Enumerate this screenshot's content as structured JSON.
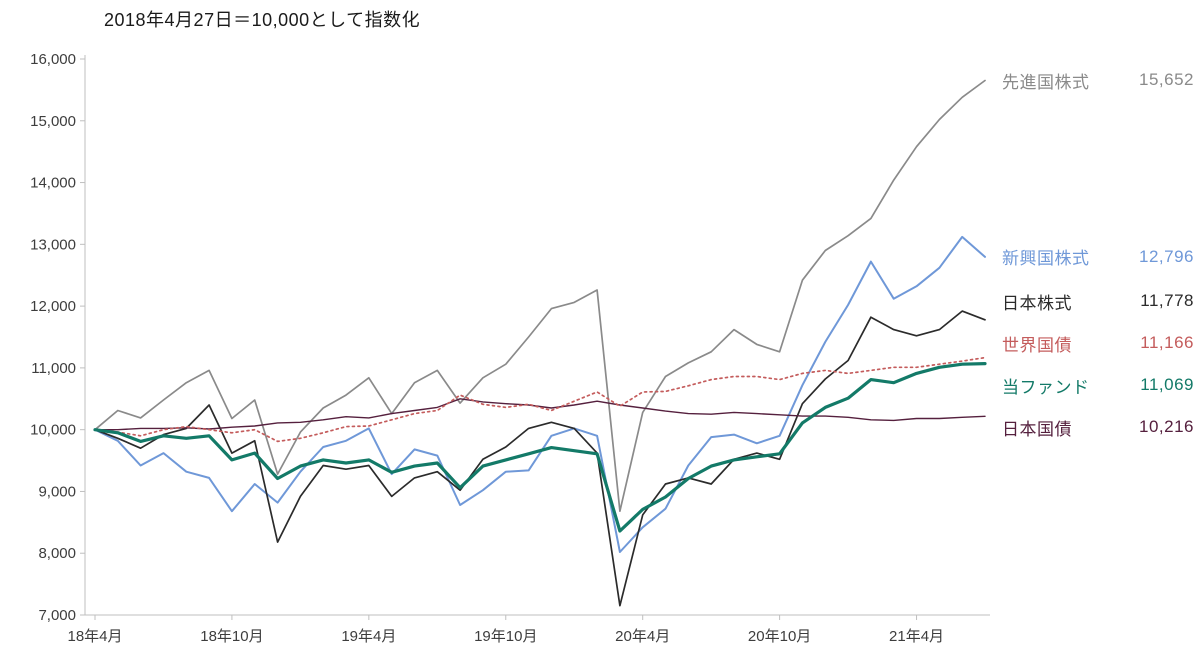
{
  "title": "2018年4月27日＝10,000として指数化",
  "chart_data": {
    "type": "line",
    "grid": false,
    "legend_position": "right",
    "ylim": [
      7000,
      16000
    ],
    "y_tick_step": 1000,
    "y_ticks": [
      {
        "label": "16,000",
        "value": 16000
      },
      {
        "label": "15,000",
        "value": 15000
      },
      {
        "label": "14,000",
        "value": 14000
      },
      {
        "label": "13,000",
        "value": 13000
      },
      {
        "label": "12,000",
        "value": 12000
      },
      {
        "label": "11,000",
        "value": 11000
      },
      {
        "label": "10,000",
        "value": 10000
      },
      {
        "label": "9,000",
        "value": 9000
      },
      {
        "label": "8,000",
        "value": 8000
      },
      {
        "label": "7,000",
        "value": 7000
      }
    ],
    "x_months_total": 40,
    "x_ticks": [
      {
        "label": "18年4月",
        "month": 0
      },
      {
        "label": "18年10月",
        "month": 6
      },
      {
        "label": "19年4月",
        "month": 12
      },
      {
        "label": "19年10月",
        "month": 18
      },
      {
        "label": "20年4月",
        "month": 24
      },
      {
        "label": "20年10月",
        "month": 30
      },
      {
        "label": "21年4月",
        "month": 36
      }
    ],
    "series": [
      {
        "key": "developed-equities",
        "name": "先進国株式",
        "end_label": "15,652",
        "end_value": 15652,
        "color": "#8a8a8a",
        "style": "solid",
        "width": 1.7,
        "values": [
          10000,
          10310,
          10190,
          10480,
          10760,
          10960,
          10180,
          10480,
          9280,
          9960,
          10350,
          10560,
          10840,
          10260,
          10760,
          10960,
          10430,
          10840,
          11060,
          11500,
          11960,
          12060,
          12260,
          8680,
          10280,
          10860,
          11080,
          11260,
          11620,
          11380,
          11260,
          12420,
          12900,
          13140,
          13420,
          14040,
          14580,
          15020,
          15380,
          15652
        ]
      },
      {
        "key": "emerging-equities",
        "name": "新興国株式",
        "end_label": "12,796",
        "end_value": 12796,
        "color": "#6f98d8",
        "style": "solid",
        "width": 2.0,
        "values": [
          10000,
          9820,
          9420,
          9620,
          9320,
          9220,
          8680,
          9120,
          8820,
          9320,
          9720,
          9820,
          10020,
          9280,
          9680,
          9580,
          8780,
          9020,
          9320,
          9340,
          9900,
          10020,
          9900,
          8020,
          8420,
          8720,
          9420,
          9880,
          9920,
          9780,
          9900,
          10720,
          11420,
          12020,
          12720,
          12120,
          12320,
          12620,
          13120,
          12796
        ]
      },
      {
        "key": "japan-equities",
        "name": "日本株式",
        "end_label": "11,778",
        "end_value": 11778,
        "color": "#2b2b2b",
        "style": "solid",
        "width": 1.7,
        "values": [
          10000,
          9860,
          9700,
          9920,
          10020,
          10400,
          9620,
          9820,
          8180,
          8920,
          9420,
          9360,
          9420,
          8920,
          9220,
          9320,
          9020,
          9520,
          9720,
          10020,
          10120,
          10020,
          9620,
          7150,
          8620,
          9120,
          9220,
          9120,
          9520,
          9620,
          9520,
          10420,
          10820,
          11120,
          11820,
          11620,
          11520,
          11620,
          11920,
          11778
        ]
      },
      {
        "key": "global-bonds",
        "name": "世界国債",
        "end_label": "11,166",
        "end_value": 11166,
        "color": "#c45c5c",
        "style": "dotted",
        "width": 1.7,
        "values": [
          10000,
          9960,
          9900,
          10000,
          10050,
          10000,
          9950,
          10000,
          9810,
          9860,
          9950,
          10050,
          10060,
          10160,
          10260,
          10310,
          10560,
          10410,
          10360,
          10410,
          10310,
          10460,
          10610,
          10380,
          10610,
          10620,
          10710,
          10810,
          10860,
          10860,
          10810,
          10910,
          10960,
          10910,
          10960,
          11010,
          11010,
          11060,
          11110,
          11166
        ]
      },
      {
        "key": "this-fund",
        "name": "当ファンド",
        "end_label": "11,069",
        "end_value": 11069,
        "color": "#137a68",
        "style": "solid",
        "width": 3.2,
        "values": [
          10000,
          9950,
          9810,
          9900,
          9860,
          9900,
          9510,
          9620,
          9210,
          9410,
          9510,
          9460,
          9510,
          9310,
          9410,
          9460,
          9060,
          9410,
          9510,
          9610,
          9710,
          9660,
          9610,
          8360,
          8710,
          8910,
          9210,
          9410,
          9510,
          9560,
          9610,
          10110,
          10360,
          10510,
          10810,
          10760,
          10910,
          11010,
          11060,
          11069
        ]
      },
      {
        "key": "japan-bonds",
        "name": "日本国債",
        "end_label": "10,216",
        "end_value": 10216,
        "color": "#55203e",
        "style": "solid",
        "width": 1.4,
        "values": [
          10000,
          10000,
          10020,
          10020,
          10030,
          10010,
          10040,
          10060,
          10110,
          10120,
          10160,
          10210,
          10190,
          10260,
          10310,
          10360,
          10500,
          10450,
          10420,
          10400,
          10350,
          10400,
          10460,
          10400,
          10350,
          10300,
          10260,
          10250,
          10280,
          10260,
          10240,
          10220,
          10220,
          10200,
          10160,
          10150,
          10180,
          10180,
          10200,
          10216
        ]
      }
    ]
  }
}
